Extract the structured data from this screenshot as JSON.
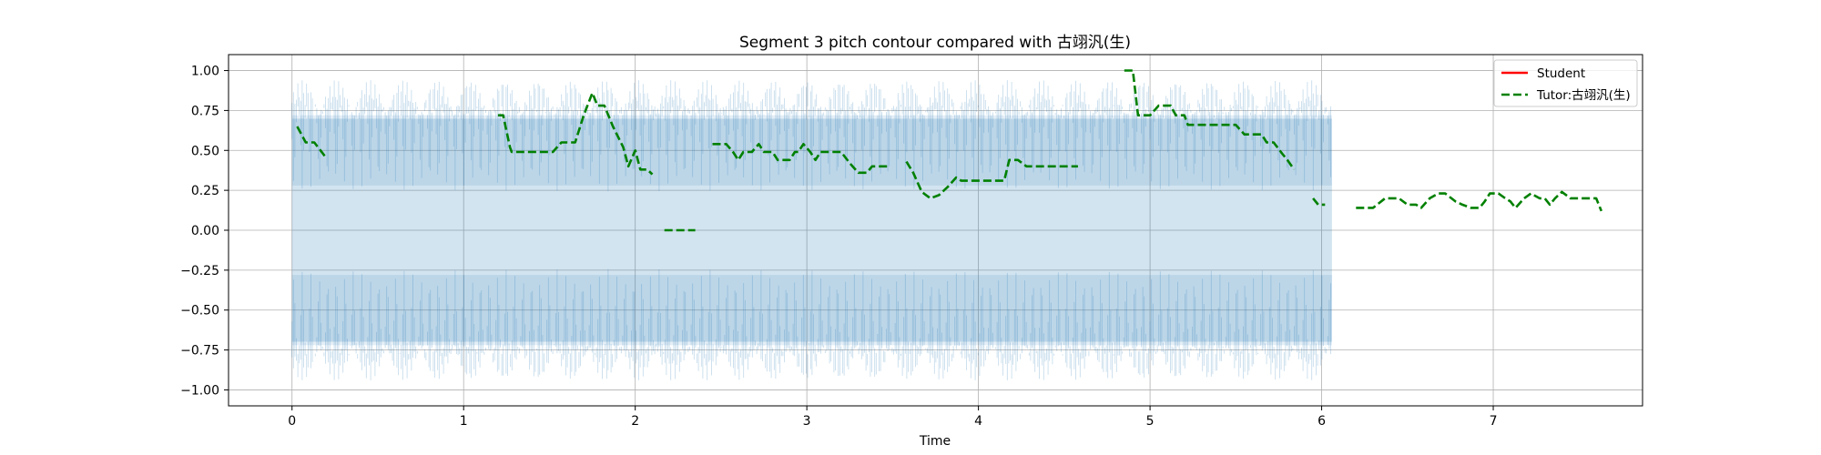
{
  "chart_data": {
    "type": "line",
    "title": "Segment 3 pitch contour compared with 古翊汎(生)",
    "xlabel": "Time",
    "ylabel": "",
    "xlim": [
      -0.37,
      7.87
    ],
    "ylim": [
      -1.1,
      1.1
    ],
    "grid": true,
    "legend_position": "upper right",
    "x_ticks": [
      0,
      1,
      2,
      3,
      4,
      5,
      6,
      7
    ],
    "x_tick_labels": [
      "0",
      "1",
      "2",
      "3",
      "4",
      "5",
      "6",
      "7"
    ],
    "y_ticks": [
      1.0,
      0.75,
      0.5,
      0.25,
      0.0,
      -0.25,
      -0.5,
      -0.75,
      -1.0
    ],
    "y_tick_labels": [
      "1.00",
      "0.75",
      "0.50",
      "0.25",
      "0.00",
      "−0.25",
      "−0.50",
      "−0.75",
      "−1.00"
    ],
    "waveform": {
      "x_start": 0.0,
      "x_end": 6.06,
      "amplitude": 0.97,
      "color": "#1f77b4"
    },
    "series": [
      {
        "name": "Student",
        "color": "#ff0000",
        "style": "solid",
        "segments": []
      },
      {
        "name": "Tutor:古翊汎(生)",
        "color": "#008000",
        "style": "dashed",
        "segments": [
          [
            [
              0.03,
              0.65
            ],
            [
              0.08,
              0.55
            ],
            [
              0.13,
              0.55
            ],
            [
              0.18,
              0.48
            ],
            [
              0.2,
              0.45
            ]
          ],
          [
            [
              1.2,
              0.72
            ],
            [
              1.23,
              0.72
            ],
            [
              1.27,
              0.52
            ],
            [
              1.28,
              0.49
            ],
            [
              1.35,
              0.49
            ],
            [
              1.45,
              0.49
            ],
            [
              1.52,
              0.49
            ],
            [
              1.57,
              0.55
            ],
            [
              1.65,
              0.55
            ],
            [
              1.7,
              0.72
            ],
            [
              1.75,
              0.86
            ],
            [
              1.78,
              0.78
            ],
            [
              1.82,
              0.78
            ],
            [
              1.87,
              0.65
            ],
            [
              1.93,
              0.52
            ],
            [
              1.96,
              0.4
            ],
            [
              2.0,
              0.5
            ],
            [
              2.03,
              0.38
            ],
            [
              2.07,
              0.38
            ],
            [
              2.1,
              0.35
            ]
          ],
          [
            [
              2.17,
              0.0
            ],
            [
              2.35,
              0.0
            ]
          ],
          [
            [
              2.45,
              0.54
            ],
            [
              2.53,
              0.54
            ],
            [
              2.57,
              0.49
            ],
            [
              2.6,
              0.44
            ],
            [
              2.63,
              0.49
            ],
            [
              2.68,
              0.49
            ],
            [
              2.72,
              0.54
            ],
            [
              2.75,
              0.49
            ],
            [
              2.8,
              0.49
            ],
            [
              2.83,
              0.44
            ],
            [
              2.9,
              0.44
            ],
            [
              2.93,
              0.49
            ],
            [
              2.95,
              0.49
            ],
            [
              2.98,
              0.54
            ],
            [
              3.02,
              0.49
            ],
            [
              3.05,
              0.44
            ],
            [
              3.08,
              0.49
            ],
            [
              3.2,
              0.49
            ],
            [
              3.25,
              0.42
            ],
            [
              3.3,
              0.36
            ],
            [
              3.35,
              0.36
            ],
            [
              3.38,
              0.4
            ],
            [
              3.48,
              0.4
            ]
          ],
          [
            [
              3.58,
              0.43
            ],
            [
              3.62,
              0.36
            ],
            [
              3.67,
              0.24
            ],
            [
              3.72,
              0.2
            ],
            [
              3.77,
              0.22
            ],
            [
              3.82,
              0.27
            ],
            [
              3.87,
              0.33
            ],
            [
              3.9,
              0.31
            ],
            [
              4.05,
              0.31
            ],
            [
              4.15,
              0.31
            ],
            [
              4.18,
              0.44
            ],
            [
              4.23,
              0.44
            ],
            [
              4.28,
              0.4
            ],
            [
              4.58,
              0.4
            ]
          ],
          [
            [
              4.85,
              1.0
            ],
            [
              4.9,
              1.0
            ],
            [
              4.93,
              0.72
            ],
            [
              5.0,
              0.72
            ],
            [
              5.05,
              0.78
            ],
            [
              5.12,
              0.78
            ],
            [
              5.15,
              0.72
            ],
            [
              5.2,
              0.72
            ],
            [
              5.22,
              0.66
            ],
            [
              5.5,
              0.66
            ],
            [
              5.55,
              0.6
            ],
            [
              5.65,
              0.6
            ],
            [
              5.68,
              0.55
            ],
            [
              5.72,
              0.55
            ],
            [
              5.77,
              0.48
            ],
            [
              5.8,
              0.44
            ],
            [
              5.84,
              0.38
            ]
          ],
          [
            [
              5.95,
              0.2
            ],
            [
              5.98,
              0.16
            ],
            [
              6.02,
              0.16
            ]
          ],
          [
            [
              6.2,
              0.14
            ],
            [
              6.3,
              0.14
            ],
            [
              6.37,
              0.2
            ],
            [
              6.45,
              0.2
            ],
            [
              6.5,
              0.16
            ],
            [
              6.55,
              0.16
            ],
            [
              6.58,
              0.14
            ],
            [
              6.63,
              0.2
            ],
            [
              6.68,
              0.23
            ],
            [
              6.72,
              0.23
            ],
            [
              6.78,
              0.18
            ],
            [
              6.82,
              0.16
            ],
            [
              6.87,
              0.14
            ],
            [
              6.92,
              0.14
            ],
            [
              6.95,
              0.18
            ],
            [
              6.98,
              0.23
            ],
            [
              7.03,
              0.23
            ],
            [
              7.07,
              0.2
            ],
            [
              7.1,
              0.18
            ],
            [
              7.13,
              0.14
            ],
            [
              7.18,
              0.2
            ],
            [
              7.22,
              0.23
            ],
            [
              7.27,
              0.2
            ],
            [
              7.3,
              0.2
            ],
            [
              7.33,
              0.16
            ],
            [
              7.36,
              0.2
            ],
            [
              7.4,
              0.24
            ],
            [
              7.45,
              0.2
            ],
            [
              7.5,
              0.2
            ],
            [
              7.6,
              0.2
            ],
            [
              7.63,
              0.12
            ]
          ]
        ]
      }
    ]
  }
}
